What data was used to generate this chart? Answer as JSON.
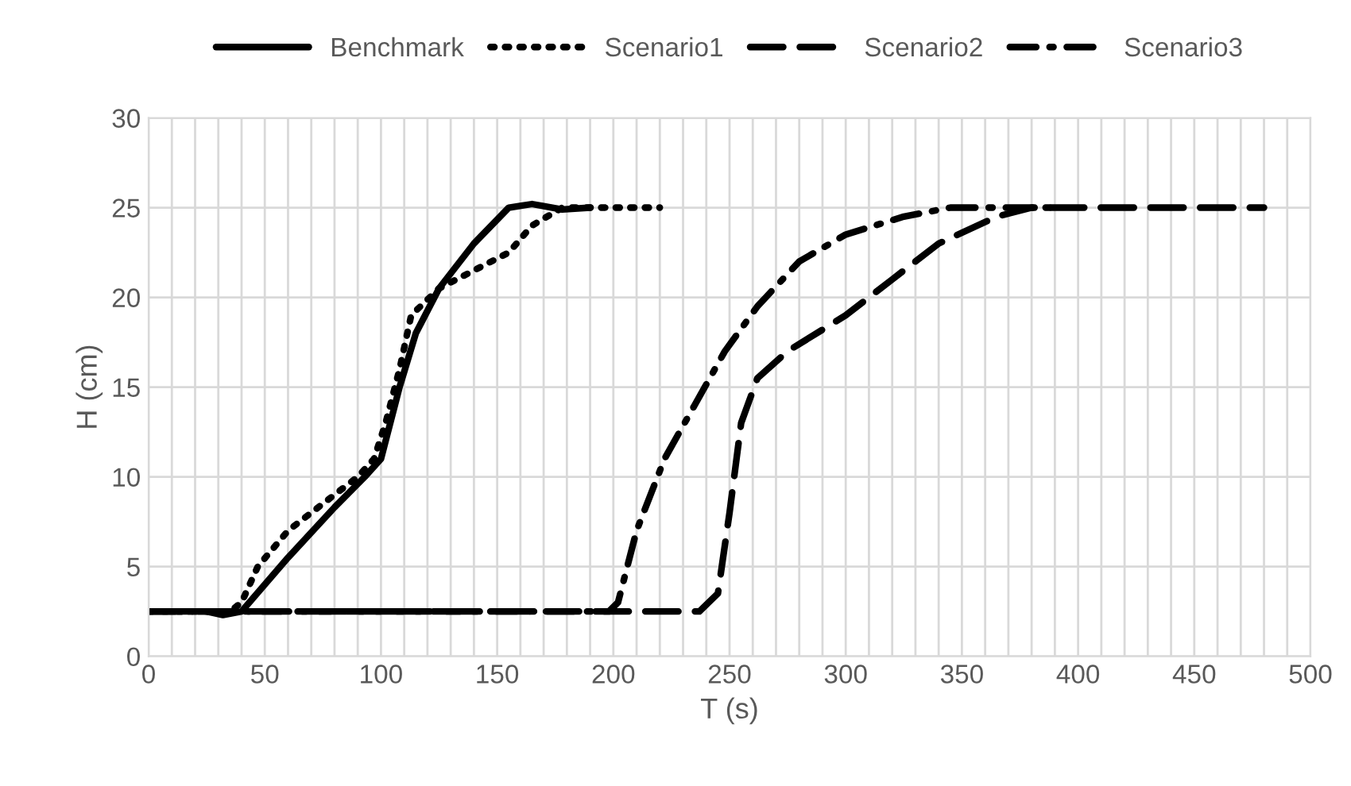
{
  "chart_data": {
    "type": "line",
    "xlabel": "T (s)",
    "ylabel": "H (cm)",
    "xlim": [
      0,
      500
    ],
    "ylim": [
      0,
      30
    ],
    "xticks": [
      0,
      {
        "value": 10,
        "label": null
      },
      {
        "value": 20,
        "label": null
      },
      {
        "value": 30,
        "label": null
      },
      {
        "value": 40,
        "label": null
      },
      50,
      {
        "value": 60,
        "label": null
      },
      {
        "value": 70,
        "label": null
      },
      {
        "value": 80,
        "label": null
      },
      {
        "value": 90,
        "label": null
      },
      100,
      {
        "value": 110,
        "label": null
      },
      {
        "value": 120,
        "label": null
      },
      {
        "value": 130,
        "label": null
      },
      {
        "value": 140,
        "label": null
      },
      150,
      {
        "value": 160,
        "label": null
      },
      {
        "value": 170,
        "label": null
      },
      {
        "value": 180,
        "label": null
      },
      {
        "value": 190,
        "label": null
      },
      200,
      {
        "value": 210,
        "label": null
      },
      {
        "value": 220,
        "label": null
      },
      {
        "value": 230,
        "label": null
      },
      {
        "value": 240,
        "label": null
      },
      250,
      {
        "value": 260,
        "label": null
      },
      {
        "value": 270,
        "label": null
      },
      {
        "value": 280,
        "label": null
      },
      {
        "value": 290,
        "label": null
      },
      300,
      {
        "value": 310,
        "label": null
      },
      {
        "value": 320,
        "label": null
      },
      {
        "value": 330,
        "label": null
      },
      {
        "value": 340,
        "label": null
      },
      350,
      {
        "value": 360,
        "label": null
      },
      {
        "value": 370,
        "label": null
      },
      {
        "value": 380,
        "label": null
      },
      {
        "value": 390,
        "label": null
      },
      400,
      {
        "value": 410,
        "label": null
      },
      {
        "value": 420,
        "label": null
      },
      {
        "value": 430,
        "label": null
      },
      {
        "value": 440,
        "label": null
      },
      450,
      {
        "value": 460,
        "label": null
      },
      {
        "value": 470,
        "label": null
      },
      {
        "value": 480,
        "label": null
      },
      {
        "value": 490,
        "label": null
      },
      500
    ],
    "yticks": [
      0,
      5,
      10,
      15,
      20,
      25,
      30
    ],
    "grid": true,
    "legend": "top",
    "marker": "none",
    "series": [
      {
        "name": "Benchmark",
        "color": "#000000",
        "line_style": "solid",
        "x": [
          0,
          25,
          32,
          40,
          60,
          80,
          93,
          100,
          108,
          115,
          125,
          140,
          155,
          165,
          178,
          190
        ],
        "values": [
          2.5,
          2.5,
          2.3,
          2.5,
          5.5,
          8.3,
          10,
          11,
          15,
          18,
          20.5,
          23,
          25,
          25.2,
          24.9,
          25
        ]
      },
      {
        "name": "Scenario1",
        "color": "#000000",
        "line_style": "dotted",
        "x": [
          0,
          35,
          40,
          47,
          60,
          75,
          90,
          97,
          102,
          108,
          113,
          125,
          140,
          155,
          165,
          178,
          220
        ],
        "values": [
          2.5,
          2.5,
          3,
          5,
          7,
          8.5,
          10,
          11,
          13,
          16,
          19,
          20.5,
          21.5,
          22.5,
          24,
          25,
          25
        ]
      },
      {
        "name": "Scenario2",
        "color": "#000000",
        "line_style": "dashed",
        "x": [
          0,
          237,
          245,
          250,
          255,
          262,
          275,
          300,
          320,
          340,
          365,
          380,
          480
        ],
        "values": [
          2.5,
          2.5,
          3.5,
          8,
          13,
          15.5,
          17,
          19,
          21,
          23,
          24.5,
          25,
          25
        ]
      },
      {
        "name": "Scenario3",
        "color": "#000000",
        "line_style": "dashdot",
        "x": [
          0,
          198,
          202,
          210,
          222,
          235,
          248,
          262,
          280,
          300,
          325,
          345,
          390
        ],
        "values": [
          2.5,
          2.5,
          3,
          7,
          11,
          14,
          17,
          19.5,
          22,
          23.5,
          24.5,
          25,
          25
        ]
      }
    ]
  }
}
